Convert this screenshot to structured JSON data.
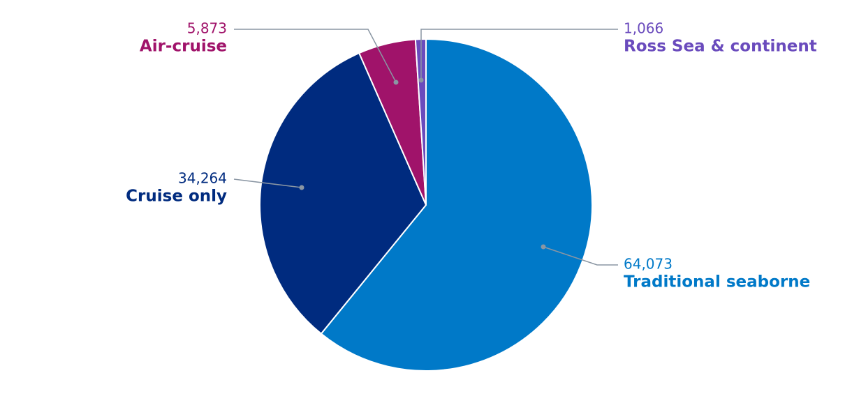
{
  "chart_data": {
    "type": "pie",
    "categories": [
      "Traditional seaborne",
      "Cruise only",
      "Air-cruise",
      "Ross Sea & continent"
    ],
    "values": [
      64073,
      34264,
      5873,
      1066
    ],
    "value_labels": [
      "64,073",
      "34,264",
      "5,873",
      "1,066"
    ],
    "colors": [
      "#0079c8",
      "#002b7f",
      "#a0136a",
      "#6a4bbd"
    ]
  }
}
